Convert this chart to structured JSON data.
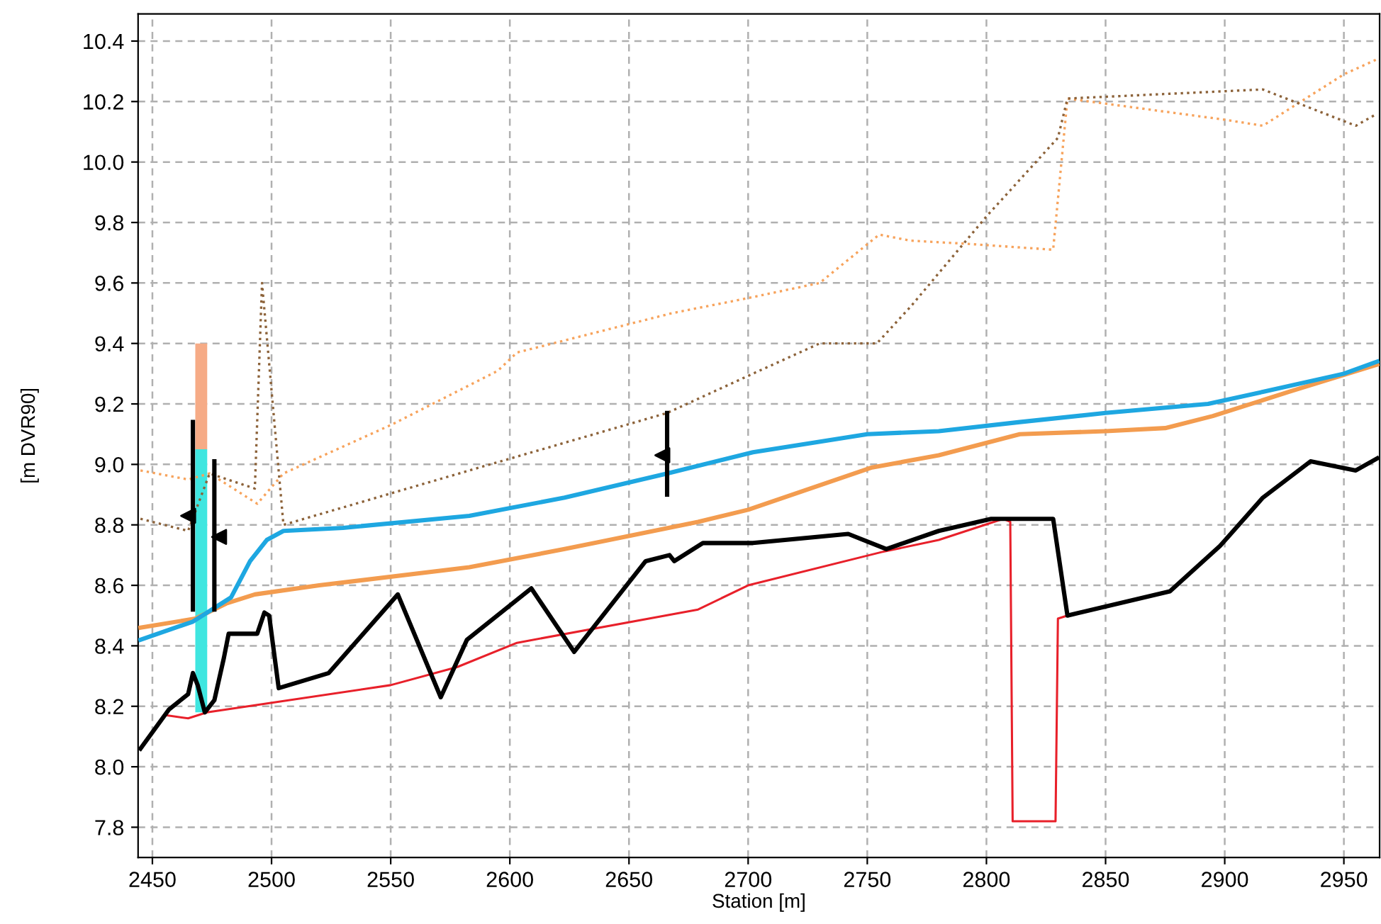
{
  "chart_data": {
    "type": "line",
    "xlabel": "Station [m]",
    "ylabel": "[m DVR90]",
    "xlim": [
      2444,
      2965
    ],
    "ylim": [
      7.7,
      10.49
    ],
    "xticks": [
      2450,
      2500,
      2550,
      2600,
      2650,
      2700,
      2750,
      2800,
      2850,
      2900,
      2950
    ],
    "yticks": [
      7.8,
      {
        "value": 8,
        "label": "8.0"
      },
      8.2,
      8.4,
      8.6,
      8.8,
      {
        "value": 9,
        "label": "9.0"
      },
      9.2,
      9.4,
      9.6,
      9.8,
      {
        "value": 10,
        "label": "10.0"
      },
      10.2,
      10.4
    ],
    "grid": true,
    "legend": false,
    "series": [
      {
        "type": "bar",
        "color": "#f6ab86",
        "x": [
          2470.5
        ],
        "base": [
          9.05
        ],
        "values": [
          0.35
        ]
      },
      {
        "type": "bar",
        "color": "#3fe6e0",
        "x": [
          2470.5
        ],
        "base": [
          8.18
        ],
        "values": [
          0.87
        ]
      },
      {
        "color": "#f7a35c",
        "line_style": "dotted",
        "x": [
          2445,
          2465,
          2474,
          2494,
          2505,
          2550,
          2595,
          2603,
          2668,
          2700,
          2730,
          2755,
          2768,
          2791,
          2828,
          2834,
          2900,
          2916,
          2950,
          2964
        ],
        "values": [
          8.98,
          8.95,
          8.97,
          8.87,
          8.97,
          9.13,
          9.31,
          9.37,
          9.5,
          9.55,
          9.6,
          9.76,
          9.74,
          9.73,
          9.71,
          10.21,
          10.14,
          10.12,
          10.29,
          10.34
        ]
      },
      {
        "color": "#8c6239",
        "line_style": "dotted",
        "x": [
          2445,
          2465,
          2474,
          2493,
          2496,
          2505,
          2583,
          2666,
          2702,
          2730,
          2754,
          2768,
          2800,
          2830,
          2834,
          2916,
          2955,
          2964
        ],
        "values": [
          8.82,
          8.78,
          8.97,
          8.92,
          9.6,
          8.8,
          8.98,
          9.17,
          9.3,
          9.4,
          9.4,
          9.52,
          9.82,
          10.08,
          10.21,
          10.24,
          10.12,
          10.16
        ]
      },
      {
        "color": "#e8202a",
        "line_style": "solid",
        "x": [
          2456,
          2465,
          2473,
          2550,
          2578,
          2603,
          2679,
          2700,
          2756,
          2780,
          2807,
          2810,
          2811,
          2829,
          2830,
          2834
        ],
        "values": [
          8.17,
          8.16,
          8.18,
          8.27,
          8.33,
          8.41,
          8.52,
          8.6,
          8.71,
          8.75,
          8.82,
          8.81,
          7.82,
          7.82,
          8.49,
          8.5
        ]
      },
      {
        "color": "#000000",
        "line_style": "solid",
        "x": [
          2445,
          2457,
          2465,
          2467,
          2469,
          2472,
          2476,
          2480,
          2482,
          2494,
          2497,
          2499,
          2503,
          2524,
          2553,
          2571,
          2582,
          2609,
          2627,
          2657,
          2667,
          2669,
          2681,
          2702,
          2742,
          2758,
          2780,
          2802,
          2828,
          2834,
          2877,
          2898,
          2916,
          2936,
          2955,
          2964
        ],
        "values": [
          8.06,
          8.19,
          8.24,
          8.31,
          8.27,
          8.18,
          8.22,
          8.36,
          8.44,
          8.44,
          8.51,
          8.5,
          8.26,
          8.31,
          8.57,
          8.23,
          8.42,
          8.59,
          8.38,
          8.68,
          8.7,
          8.68,
          8.74,
          8.74,
          8.77,
          8.72,
          8.78,
          8.82,
          8.82,
          8.5,
          8.58,
          8.73,
          8.89,
          9.01,
          8.98,
          9.02
        ]
      },
      {
        "color": "#f39c4f",
        "line_style": "solid",
        "x": [
          2445,
          2468,
          2481,
          2493,
          2520,
          2583,
          2623,
          2679,
          2700,
          2752,
          2780,
          2814,
          2850,
          2875,
          2895,
          2927,
          2964
        ],
        "values": [
          8.46,
          8.49,
          8.54,
          8.57,
          8.6,
          8.66,
          8.72,
          8.81,
          8.85,
          8.99,
          9.03,
          9.1,
          9.11,
          9.12,
          9.16,
          9.24,
          9.33
        ]
      },
      {
        "color": "#1ea7e1",
        "line_style": "solid",
        "x": [
          2445,
          2467,
          2477,
          2483,
          2491,
          2498,
          2505,
          2530,
          2583,
          2623,
          2666,
          2702,
          2750,
          2780,
          2814,
          2850,
          2893,
          2916,
          2950,
          2964
        ],
        "values": [
          8.42,
          8.48,
          8.53,
          8.56,
          8.68,
          8.75,
          8.78,
          8.79,
          8.83,
          8.89,
          8.97,
          9.04,
          9.1,
          9.11,
          9.14,
          9.17,
          9.2,
          9.24,
          9.3,
          9.34
        ]
      },
      {
        "color": "#000000",
        "line_style": "solid",
        "x": [
          2467,
          2467
        ],
        "values": [
          8.52,
          9.14
        ]
      },
      {
        "color": "#000000",
        "line_style": "solid",
        "x": [
          2476,
          2476
        ],
        "values": [
          8.52,
          9.01
        ]
      },
      {
        "color": "#000000",
        "line_style": "solid",
        "x": [
          2666,
          2666
        ],
        "values": [
          8.9,
          9.17
        ]
      },
      {
        "type": "scatter",
        "color": "#000000",
        "marker": "triangle",
        "x": [
          2465,
          2478,
          2664
        ],
        "values": [
          8.83,
          8.76,
          9.03
        ]
      }
    ]
  }
}
